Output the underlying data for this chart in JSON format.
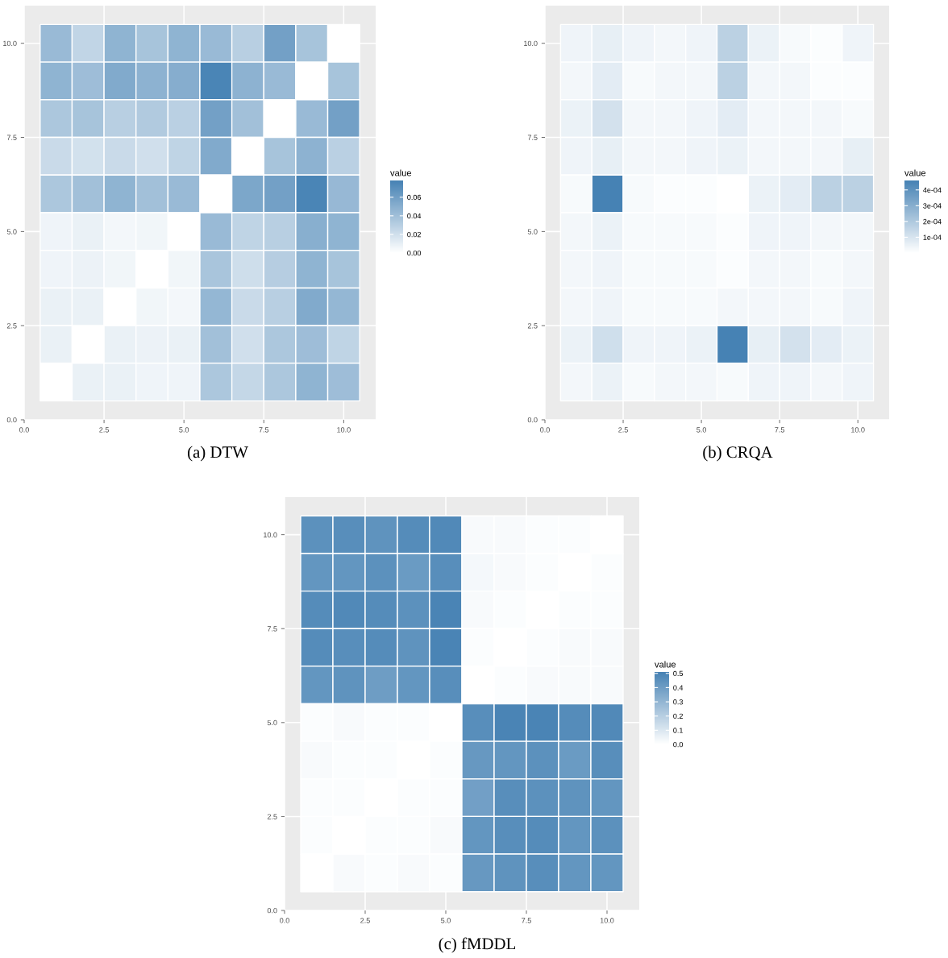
{
  "chart_data": [
    {
      "type": "heatmap",
      "annotations": [
        "(a) DTW"
      ],
      "clabel": "value",
      "colors": [
        "#ffffff",
        "#4682b4"
      ],
      "grid": true,
      "x": [
        1,
        2,
        3,
        4,
        5,
        6,
        7,
        8,
        9,
        10
      ],
      "y": [
        10,
        9,
        8,
        7,
        6,
        5,
        4,
        3,
        2,
        1
      ],
      "xlim": [
        0,
        11
      ],
      "ylim": [
        0,
        11
      ],
      "xticks": [
        {
          "value": 0,
          "label": "0.0"
        },
        {
          "value": 2.5,
          "label": "2.5"
        },
        {
          "value": 5,
          "label": "5.0"
        },
        {
          "value": 7.5,
          "label": "7.5"
        },
        {
          "value": 10,
          "label": "10.0"
        }
      ],
      "yticks": [
        {
          "value": 0,
          "label": "0.0"
        },
        {
          "value": 2.5,
          "label": "2.5"
        },
        {
          "value": 5,
          "label": "5.0"
        },
        {
          "value": 7.5,
          "label": "7.5"
        },
        {
          "value": 10,
          "label": "10.0"
        }
      ],
      "clim": [
        0,
        0.078
      ],
      "cticks": [
        {
          "value": 0,
          "label": "0.00"
        },
        {
          "value": 0.02,
          "label": "0.02"
        },
        {
          "value": 0.04,
          "label": "0.04"
        },
        {
          "value": 0.06,
          "label": "0.06"
        }
      ],
      "cells": [
        [
          0.043,
          0.026,
          0.047,
          0.037,
          0.047,
          0.043,
          0.03,
          0.059,
          0.037,
          0
        ],
        [
          0.047,
          0.041,
          0.053,
          0.048,
          0.051,
          0.076,
          0.048,
          0.043,
          0,
          0.037
        ],
        [
          0.035,
          0.037,
          0.03,
          0.033,
          0.029,
          0.059,
          0.039,
          0,
          0.043,
          0.059
        ],
        [
          0.023,
          0.019,
          0.023,
          0.02,
          0.027,
          0.053,
          0,
          0.037,
          0.048,
          0.029
        ],
        [
          0.035,
          0.039,
          0.047,
          0.039,
          0.043,
          0,
          0.055,
          0.059,
          0.076,
          0.044
        ],
        [
          0.007,
          0.009,
          0.005,
          0.006,
          0,
          0.043,
          0.027,
          0.03,
          0.05,
          0.047
        ],
        [
          0.007,
          0.008,
          0.006,
          0,
          0.006,
          0.036,
          0.021,
          0.031,
          0.047,
          0.037
        ],
        [
          0.009,
          0.009,
          0,
          0.006,
          0.005,
          0.045,
          0.023,
          0.03,
          0.053,
          0.045
        ],
        [
          0.009,
          0,
          0.009,
          0.008,
          0.009,
          0.039,
          0.02,
          0.035,
          0.041,
          0.027
        ],
        [
          0,
          0.009,
          0.009,
          0.007,
          0.007,
          0.035,
          0.025,
          0.035,
          0.047,
          0.041
        ]
      ]
    },
    {
      "type": "heatmap",
      "annotations": [
        "(b) CRQA"
      ],
      "clabel": "value",
      "colors": [
        "#ffffff",
        "#4682b4"
      ],
      "grid": true,
      "x": [
        1,
        2,
        3,
        4,
        5,
        6,
        7,
        8,
        9,
        10
      ],
      "y": [
        10,
        9,
        8,
        7,
        6,
        5,
        4,
        3,
        2,
        1
      ],
      "xlim": [
        0,
        11
      ],
      "ylim": [
        0,
        11
      ],
      "xticks": [
        {
          "value": 0,
          "label": "0.0"
        },
        {
          "value": 2.5,
          "label": "2.5"
        },
        {
          "value": 5,
          "label": "5.0"
        },
        {
          "value": 7.5,
          "label": "7.5"
        },
        {
          "value": 10,
          "label": "10.0"
        }
      ],
      "yticks": [
        {
          "value": 0,
          "label": "0.0"
        },
        {
          "value": 2.5,
          "label": "2.5"
        },
        {
          "value": 5,
          "label": "5.0"
        },
        {
          "value": 7.5,
          "label": "7.5"
        },
        {
          "value": 10,
          "label": "10.0"
        }
      ],
      "clim": [
        0,
        0.00046
      ],
      "cticks": [
        {
          "value": 0.0001,
          "label": "1e-04"
        },
        {
          "value": 0.0002,
          "label": "2e-04"
        },
        {
          "value": 0.0003,
          "label": "3e-04"
        },
        {
          "value": 0.0004,
          "label": "4e-04"
        }
      ],
      "cells": [
        [
          4e-05,
          6e-05,
          4e-05,
          3e-05,
          4e-05,
          0.00017,
          5e-05,
          2e-05,
          1e-05,
          4e-05
        ],
        [
          3e-05,
          7e-05,
          2e-05,
          3e-05,
          3e-05,
          0.00017,
          3e-05,
          3e-05,
          1e-05,
          1e-05
        ],
        [
          5e-05,
          0.00011,
          3e-05,
          3e-05,
          4e-05,
          7e-05,
          3e-05,
          3e-05,
          3e-05,
          2e-05
        ],
        [
          4e-05,
          6e-05,
          3e-05,
          3e-05,
          4e-05,
          5e-05,
          3e-05,
          3e-05,
          3e-05,
          6e-05
        ],
        [
          2e-05,
          0.00046,
          2e-05,
          1e-05,
          1e-05,
          0,
          5e-05,
          7e-05,
          0.00017,
          0.00017
        ],
        [
          3e-05,
          5e-05,
          2e-05,
          2e-05,
          2e-05,
          1e-05,
          4e-05,
          4e-05,
          3e-05,
          3e-05
        ],
        [
          3e-05,
          4e-05,
          2e-05,
          2e-05,
          2e-05,
          1e-05,
          3e-05,
          3e-05,
          2e-05,
          3e-05
        ],
        [
          3e-05,
          4e-05,
          2e-05,
          2e-05,
          2e-05,
          3e-05,
          3e-05,
          3e-05,
          2e-05,
          4e-05
        ],
        [
          5e-05,
          0.00012,
          4e-05,
          4e-05,
          5e-05,
          0.00046,
          6e-05,
          0.00011,
          7e-05,
          5e-05
        ],
        [
          3e-05,
          5e-05,
          2e-05,
          3e-05,
          3e-05,
          2e-05,
          4e-05,
          4e-05,
          3e-05,
          4e-05
        ]
      ]
    },
    {
      "type": "heatmap",
      "annotations": [
        "(c) fMDDL"
      ],
      "clabel": "value",
      "colors": [
        "#ffffff",
        "#4682b4"
      ],
      "grid": true,
      "x": [
        1,
        2,
        3,
        4,
        5,
        6,
        7,
        8,
        9,
        10
      ],
      "y": [
        10,
        9,
        8,
        7,
        6,
        5,
        4,
        3,
        2,
        1
      ],
      "xlim": [
        0,
        11
      ],
      "ylim": [
        0,
        11
      ],
      "xticks": [
        {
          "value": 0,
          "label": "0.0"
        },
        {
          "value": 2.5,
          "label": "2.5"
        },
        {
          "value": 5,
          "label": "5.0"
        },
        {
          "value": 7.5,
          "label": "7.5"
        },
        {
          "value": 10,
          "label": "10.0"
        }
      ],
      "yticks": [
        {
          "value": 0,
          "label": "0.0"
        },
        {
          "value": 2.5,
          "label": "2.5"
        },
        {
          "value": 5,
          "label": "5.0"
        },
        {
          "value": 7.5,
          "label": "7.5"
        },
        {
          "value": 10,
          "label": "10.0"
        }
      ],
      "clim": [
        0,
        0.51
      ],
      "cticks": [
        {
          "value": 0,
          "label": "0.0"
        },
        0.1,
        0.2,
        0.3,
        0.4,
        0.5
      ],
      "cells": [
        [
          0.45,
          0.46,
          0.44,
          0.47,
          0.48,
          0.02,
          0.02,
          0.01,
          0.01,
          0
        ],
        [
          0.43,
          0.43,
          0.45,
          0.41,
          0.46,
          0.03,
          0.02,
          0.01,
          0,
          0.01
        ],
        [
          0.47,
          0.48,
          0.47,
          0.45,
          0.5,
          0.02,
          0.01,
          0,
          0.01,
          0.01
        ],
        [
          0.47,
          0.46,
          0.47,
          0.44,
          0.5,
          0.01,
          0,
          0.01,
          0.02,
          0.02
        ],
        [
          0.43,
          0.44,
          0.4,
          0.43,
          0.46,
          0,
          0.01,
          0.02,
          0.02,
          0.02
        ],
        [
          0.01,
          0.02,
          0.01,
          0.01,
          0,
          0.46,
          0.5,
          0.5,
          0.47,
          0.48
        ],
        [
          0.02,
          0.01,
          0.01,
          0,
          0.01,
          0.42,
          0.43,
          0.45,
          0.41,
          0.46
        ],
        [
          0.01,
          0.01,
          0,
          0.01,
          0.01,
          0.39,
          0.46,
          0.45,
          0.44,
          0.43
        ],
        [
          0.01,
          0,
          0.01,
          0.01,
          0.02,
          0.43,
          0.46,
          0.47,
          0.43,
          0.45
        ],
        [
          0,
          0.02,
          0.01,
          0.02,
          0.01,
          0.42,
          0.44,
          0.46,
          0.43,
          0.43
        ]
      ]
    }
  ]
}
